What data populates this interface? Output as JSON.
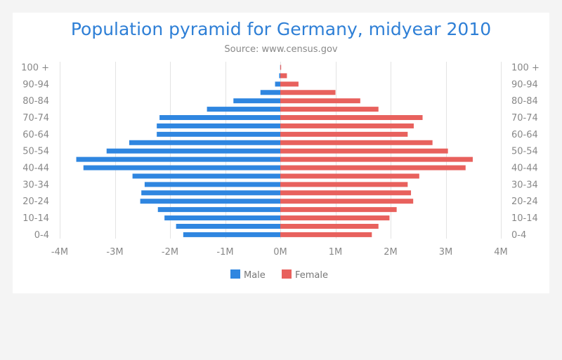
{
  "chart_data": {
    "type": "bar",
    "orientation": "horizontal",
    "title": "Population pyramid for Germany, midyear 2010",
    "subtitle": "Source: www.census.gov",
    "xlabel": "",
    "ylabel": "",
    "xlim": [
      -4000000,
      4000000
    ],
    "x_ticks": [
      -4000000,
      -3000000,
      -2000000,
      -1000000,
      0,
      1000000,
      2000000,
      3000000,
      4000000
    ],
    "x_tick_labels": [
      "-4M",
      "-3M",
      "-2M",
      "-1M",
      "0M",
      "1M",
      "2M",
      "3M",
      "4M"
    ],
    "categories": [
      "100 +",
      "95-99",
      "90-94",
      "85-89",
      "80-84",
      "75-79",
      "70-74",
      "65-69",
      "60-64",
      "55-59",
      "50-54",
      "45-49",
      "40-44",
      "35-39",
      "30-34",
      "25-29",
      "20-24",
      "15-19",
      "10-14",
      "5-9",
      "0-4"
    ],
    "visible_category_labels": [
      "100 +",
      "90-94",
      "80-84",
      "70-74",
      "60-64",
      "50-54",
      "40-44",
      "30-34",
      "20-24",
      "10-14",
      "0-4"
    ],
    "series": [
      {
        "name": "Male",
        "color": "#2f86e0",
        "values": [
          -3000,
          -20000,
          -95000,
          -360000,
          -850000,
          -1330000,
          -2190000,
          -2240000,
          -2240000,
          -2740000,
          -3150000,
          -3700000,
          -3570000,
          -2680000,
          -2460000,
          -2520000,
          -2540000,
          -2220000,
          -2100000,
          -1890000,
          -1760000
        ]
      },
      {
        "name": "Female",
        "color": "#e8615d",
        "values": [
          15000,
          120000,
          330000,
          1000000,
          1450000,
          1780000,
          2580000,
          2420000,
          2310000,
          2760000,
          3040000,
          3490000,
          3360000,
          2520000,
          2310000,
          2370000,
          2410000,
          2110000,
          1980000,
          1780000,
          1660000
        ]
      }
    ],
    "grid": true,
    "legend": "bottom-center"
  }
}
